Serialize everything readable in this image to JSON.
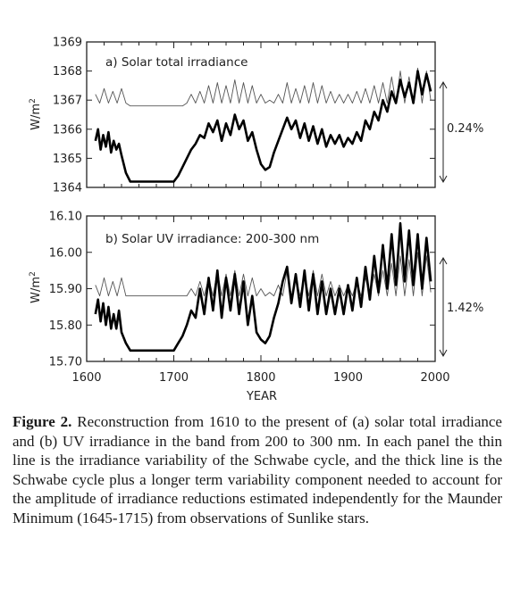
{
  "chart_data": [
    {
      "type": "line",
      "title": "a) Solar total irradiance",
      "xlabel": "",
      "ylabel": "W/m2",
      "xlim": [
        1600,
        2000
      ],
      "ylim": [
        1364,
        1369
      ],
      "yticks": [
        "1364",
        "1365",
        "1366",
        "1367",
        "1368",
        "1369"
      ],
      "range_annotation": "0.24%",
      "grid": false,
      "series": [
        {
          "style": "thin",
          "x": [
            1610,
            1615,
            1620,
            1625,
            1630,
            1635,
            1640,
            1645,
            1650,
            1700,
            1710,
            1715,
            1720,
            1725,
            1730,
            1735,
            1740,
            1745,
            1750,
            1755,
            1760,
            1765,
            1770,
            1775,
            1780,
            1785,
            1790,
            1795,
            1800,
            1805,
            1810,
            1815,
            1820,
            1825,
            1830,
            1835,
            1840,
            1845,
            1850,
            1855,
            1860,
            1865,
            1870,
            1875,
            1880,
            1885,
            1890,
            1895,
            1900,
            1905,
            1910,
            1915,
            1920,
            1925,
            1930,
            1935,
            1940,
            1945,
            1950,
            1955,
            1960,
            1965,
            1970,
            1975,
            1980,
            1985,
            1990,
            1995
          ],
          "values": [
            1367.2,
            1366.9,
            1367.4,
            1366.9,
            1367.3,
            1366.9,
            1367.4,
            1366.9,
            1366.8,
            1366.8,
            1366.8,
            1366.9,
            1367.2,
            1366.9,
            1367.3,
            1366.9,
            1367.5,
            1366.9,
            1367.6,
            1366.9,
            1367.5,
            1366.9,
            1367.7,
            1366.9,
            1367.6,
            1366.9,
            1367.5,
            1366.9,
            1367.2,
            1366.9,
            1367.0,
            1366.9,
            1367.2,
            1366.9,
            1367.6,
            1366.9,
            1367.4,
            1366.9,
            1367.5,
            1366.9,
            1367.6,
            1366.9,
            1367.5,
            1366.9,
            1367.3,
            1366.9,
            1367.2,
            1366.9,
            1367.2,
            1366.9,
            1367.3,
            1366.9,
            1367.4,
            1366.9,
            1367.5,
            1366.9,
            1367.6,
            1366.9,
            1367.8,
            1366.9,
            1368.0,
            1366.9,
            1367.8,
            1366.9,
            1368.1,
            1366.9,
            1368.0,
            1367.0
          ]
        },
        {
          "style": "thick",
          "x": [
            1610,
            1613,
            1616,
            1619,
            1622,
            1625,
            1628,
            1631,
            1634,
            1637,
            1640,
            1645,
            1650,
            1700,
            1705,
            1710,
            1715,
            1720,
            1725,
            1730,
            1735,
            1740,
            1745,
            1750,
            1755,
            1760,
            1765,
            1770,
            1775,
            1780,
            1785,
            1790,
            1795,
            1800,
            1805,
            1810,
            1815,
            1820,
            1825,
            1830,
            1835,
            1840,
            1845,
            1850,
            1855,
            1860,
            1865,
            1870,
            1875,
            1880,
            1885,
            1890,
            1895,
            1900,
            1905,
            1910,
            1915,
            1920,
            1925,
            1930,
            1935,
            1940,
            1945,
            1950,
            1955,
            1960,
            1965,
            1970,
            1975,
            1980,
            1985,
            1990,
            1995
          ],
          "values": [
            1365.6,
            1366.0,
            1365.3,
            1365.8,
            1365.4,
            1365.9,
            1365.2,
            1365.6,
            1365.3,
            1365.5,
            1365.1,
            1364.5,
            1364.2,
            1364.2,
            1364.4,
            1364.7,
            1365.0,
            1365.3,
            1365.5,
            1365.8,
            1365.7,
            1366.2,
            1365.9,
            1366.3,
            1365.6,
            1366.2,
            1365.8,
            1366.5,
            1366.0,
            1366.3,
            1365.6,
            1365.9,
            1365.3,
            1364.8,
            1364.6,
            1364.7,
            1365.2,
            1365.6,
            1366.0,
            1366.4,
            1366.0,
            1366.3,
            1365.7,
            1366.2,
            1365.6,
            1366.1,
            1365.5,
            1366.0,
            1365.4,
            1365.8,
            1365.5,
            1365.8,
            1365.4,
            1365.7,
            1365.5,
            1365.9,
            1365.6,
            1366.3,
            1366.0,
            1366.6,
            1366.3,
            1367.0,
            1366.6,
            1367.3,
            1366.9,
            1367.7,
            1367.1,
            1367.6,
            1366.9,
            1368.0,
            1367.2,
            1367.9,
            1367.3
          ]
        }
      ]
    },
    {
      "type": "line",
      "title": "b) Solar UV irradiance: 200-300 nm",
      "xlabel": "YEAR",
      "ylabel": "W/m2",
      "xlim": [
        1600,
        2000
      ],
      "ylim": [
        15.7,
        16.1
      ],
      "xticks": [
        "1600",
        "1700",
        "1800",
        "1900",
        "2000"
      ],
      "yticks": [
        "15.70",
        "15.80",
        "15.90",
        "16.00",
        "16.10"
      ],
      "range_annotation": "1.42%",
      "grid": false,
      "series": [
        {
          "style": "thin",
          "x": [
            1610,
            1615,
            1620,
            1625,
            1630,
            1635,
            1640,
            1645,
            1650,
            1700,
            1710,
            1715,
            1720,
            1725,
            1730,
            1735,
            1740,
            1745,
            1750,
            1755,
            1760,
            1765,
            1770,
            1775,
            1780,
            1785,
            1790,
            1795,
            1800,
            1805,
            1810,
            1815,
            1820,
            1825,
            1830,
            1835,
            1840,
            1845,
            1850,
            1855,
            1860,
            1865,
            1870,
            1875,
            1880,
            1885,
            1890,
            1895,
            1900,
            1905,
            1910,
            1915,
            1920,
            1925,
            1930,
            1935,
            1940,
            1945,
            1950,
            1955,
            1960,
            1965,
            1970,
            1975,
            1980,
            1985,
            1990,
            1995
          ],
          "values": [
            15.91,
            15.88,
            15.93,
            15.88,
            15.92,
            15.88,
            15.93,
            15.88,
            15.88,
            15.88,
            15.88,
            15.88,
            15.9,
            15.88,
            15.92,
            15.88,
            15.93,
            15.88,
            15.95,
            15.88,
            15.94,
            15.88,
            15.95,
            15.88,
            15.94,
            15.88,
            15.93,
            15.88,
            15.9,
            15.88,
            15.89,
            15.88,
            15.91,
            15.88,
            15.95,
            15.88,
            15.93,
            15.88,
            15.94,
            15.88,
            15.95,
            15.88,
            15.94,
            15.88,
            15.92,
            15.88,
            15.91,
            15.88,
            15.91,
            15.88,
            15.92,
            15.88,
            15.93,
            15.88,
            15.94,
            15.88,
            15.95,
            15.88,
            15.97,
            15.88,
            15.99,
            15.88,
            15.98,
            15.88,
            16.0,
            15.88,
            15.99,
            15.89
          ]
        },
        {
          "style": "thick",
          "x": [
            1610,
            1613,
            1616,
            1619,
            1622,
            1625,
            1628,
            1631,
            1634,
            1637,
            1640,
            1645,
            1650,
            1700,
            1705,
            1710,
            1715,
            1720,
            1725,
            1730,
            1735,
            1740,
            1745,
            1750,
            1755,
            1760,
            1765,
            1770,
            1775,
            1780,
            1785,
            1790,
            1795,
            1800,
            1805,
            1810,
            1815,
            1820,
            1825,
            1830,
            1835,
            1840,
            1845,
            1850,
            1855,
            1860,
            1865,
            1870,
            1875,
            1880,
            1885,
            1890,
            1895,
            1900,
            1905,
            1910,
            1915,
            1920,
            1925,
            1930,
            1935,
            1940,
            1945,
            1950,
            1955,
            1960,
            1965,
            1970,
            1975,
            1980,
            1985,
            1990,
            1995
          ],
          "values": [
            15.83,
            15.87,
            15.81,
            15.86,
            15.8,
            15.85,
            15.79,
            15.83,
            15.79,
            15.84,
            15.78,
            15.75,
            15.73,
            15.73,
            15.75,
            15.77,
            15.8,
            15.84,
            15.82,
            15.9,
            15.83,
            15.93,
            15.84,
            15.95,
            15.82,
            15.93,
            15.84,
            15.94,
            15.83,
            15.92,
            15.8,
            15.88,
            15.78,
            15.76,
            15.75,
            15.77,
            15.82,
            15.86,
            15.92,
            15.96,
            15.86,
            15.94,
            15.85,
            15.95,
            15.84,
            15.94,
            15.83,
            15.92,
            15.83,
            15.9,
            15.83,
            15.9,
            15.83,
            15.91,
            15.84,
            15.93,
            15.85,
            15.96,
            15.87,
            15.99,
            15.89,
            16.02,
            15.9,
            16.05,
            15.91,
            16.08,
            15.92,
            16.06,
            15.91,
            16.05,
            15.9,
            16.04,
            15.92
          ]
        }
      ]
    }
  ],
  "caption": {
    "label": "Figure 2.",
    "text": "Reconstruction from 1610 to the present of (a) solar total irradiance and (b) UV irradiance in the band from 200 to 300 nm. In each panel the thin line is the irradiance variability of the Schwabe cycle, and the thick line is the Schwabe cycle plus a longer term variability component needed to account for the amplitude of irradiance reductions estimated independently for the Maunder Minimum (1645-1715) from observations of Sunlike stars."
  }
}
